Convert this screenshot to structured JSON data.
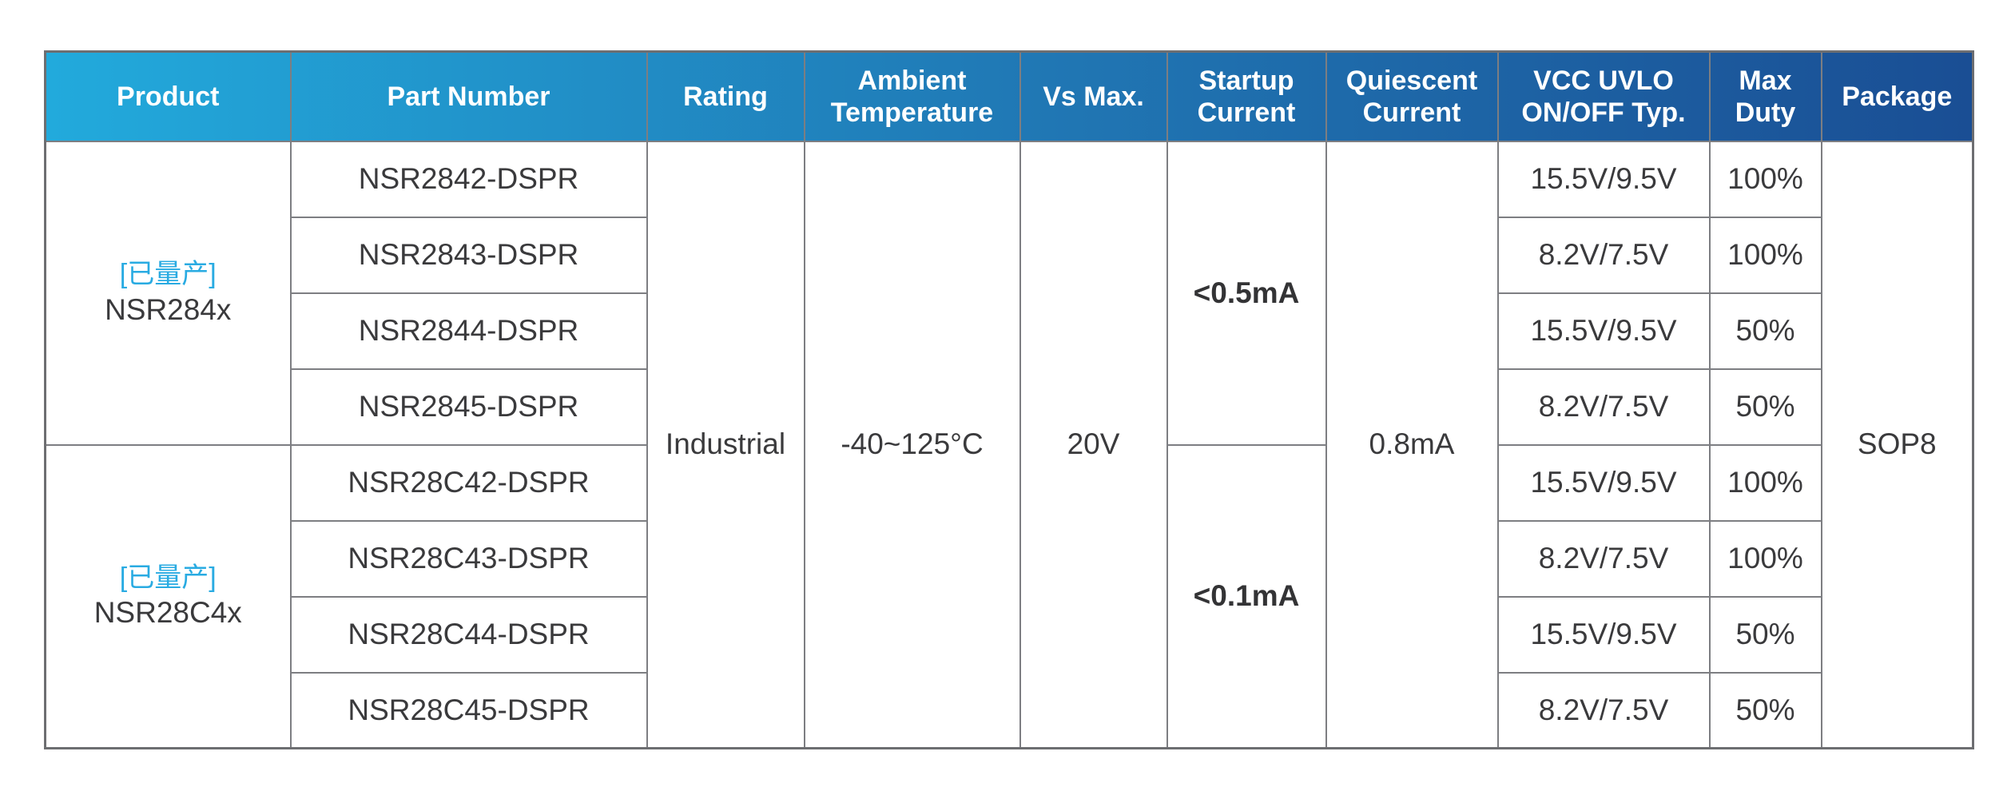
{
  "header": {
    "columns": [
      "Product",
      "Part Number",
      "Rating",
      "Ambient Temperature",
      "Vs Max.",
      "Startup Current",
      "Quiescent Current",
      "VCC UVLO ON/OFF Typ.",
      "Max Duty",
      "Package"
    ]
  },
  "shared": {
    "rating": "Industrial",
    "ambient_temperature": "-40~125°C",
    "vs_max": "20V",
    "quiescent_current": "0.8mA",
    "package": "SOP8"
  },
  "groups": [
    {
      "status_tag": "[已量产]",
      "product": "NSR284x",
      "startup_current": "<0.5mA",
      "rows": [
        {
          "part_number": "NSR2842-DSPR",
          "vcc_uvlo": "15.5V/9.5V",
          "max_duty": "100%"
        },
        {
          "part_number": "NSR2843-DSPR",
          "vcc_uvlo": "8.2V/7.5V",
          "max_duty": "100%"
        },
        {
          "part_number": "NSR2844-DSPR",
          "vcc_uvlo": "15.5V/9.5V",
          "max_duty": "50%"
        },
        {
          "part_number": "NSR2845-DSPR",
          "vcc_uvlo": "8.2V/7.5V",
          "max_duty": "50%"
        }
      ]
    },
    {
      "status_tag": "[已量产]",
      "product": "NSR28C4x",
      "startup_current": "<0.1mA",
      "rows": [
        {
          "part_number": "NSR28C42-DSPR",
          "vcc_uvlo": "15.5V/9.5V",
          "max_duty": "100%"
        },
        {
          "part_number": "NSR28C43-DSPR",
          "vcc_uvlo": "8.2V/7.5V",
          "max_duty": "100%"
        },
        {
          "part_number": "NSR28C44-DSPR",
          "vcc_uvlo": "15.5V/9.5V",
          "max_duty": "50%"
        },
        {
          "part_number": "NSR28C45-DSPR",
          "vcc_uvlo": "8.2V/7.5V",
          "max_duty": "50%"
        }
      ]
    }
  ],
  "colors": {
    "header_gradient_left": "#22aadc",
    "header_gradient_mid": "#2077b4",
    "header_gradient_right": "#1a4e94",
    "header_text": "#ffffff",
    "status_tag": "#29abe2",
    "body_text": "#3a3a3c",
    "border": "#7d7e82"
  }
}
